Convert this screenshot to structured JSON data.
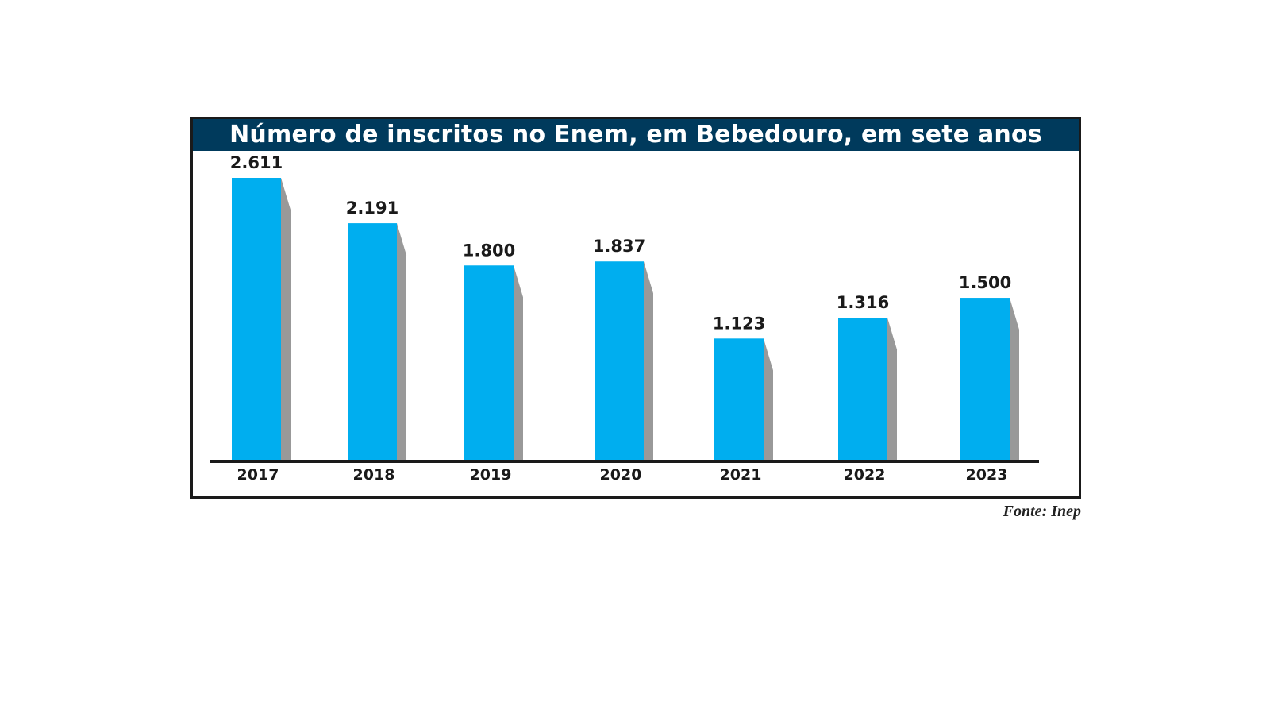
{
  "chart_data": {
    "type": "bar",
    "title": "Número de inscritos no Enem, em Bebedouro, em sete anos",
    "categories": [
      "2017",
      "2018",
      "2019",
      "2020",
      "2021",
      "2022",
      "2023"
    ],
    "values": [
      2611,
      2191,
      1800,
      1837,
      1123,
      1316,
      1500
    ],
    "value_labels": [
      "2.611",
      "2.191",
      "1.800",
      "1.837",
      "1.123",
      "1.316",
      "1.500"
    ],
    "xlabel": "",
    "ylabel": "",
    "ylim": [
      0,
      2611
    ],
    "grid": false,
    "colors": {
      "bar": "#00aeef",
      "shadow": "#999999",
      "title_bg": "#003a5c",
      "axis": "#1a1a1a"
    }
  },
  "source": "Fonte: Inep"
}
